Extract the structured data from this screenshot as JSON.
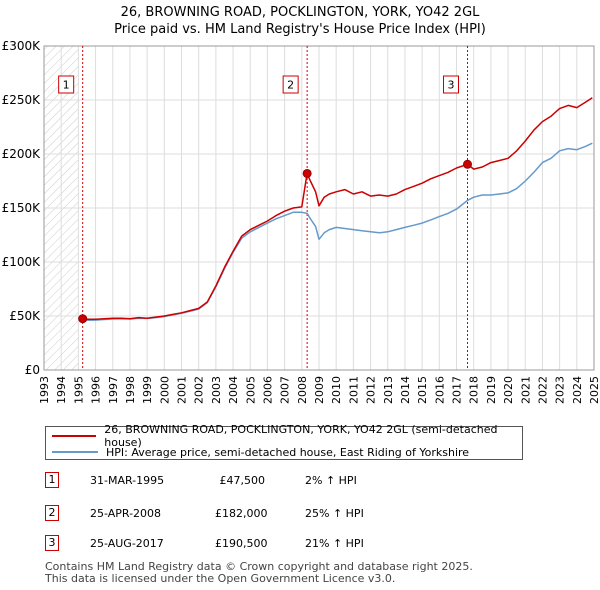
{
  "title_line1": "26, BROWNING ROAD, POCKLINGTON, YORK, YO42 2GL",
  "title_line2": "Price paid vs. HM Land Registry's House Price Index (HPI)",
  "chart_data": {
    "type": "line",
    "title": "26, BROWNING ROAD, POCKLINGTON, YORK, YO42 2GL — Price paid vs. HM Land Registry's House Price Index (HPI)",
    "xlim": [
      1993,
      2025
    ],
    "ylim": [
      0,
      300000
    ],
    "x_ticks": [
      1993,
      1994,
      1995,
      1996,
      1997,
      1998,
      1999,
      2000,
      2001,
      2002,
      2003,
      2004,
      2005,
      2006,
      2007,
      2008,
      2009,
      2010,
      2011,
      2012,
      2013,
      2014,
      2015,
      2016,
      2017,
      2018,
      2019,
      2020,
      2021,
      2022,
      2023,
      2024,
      2025
    ],
    "y_ticks": [
      0,
      50000,
      100000,
      150000,
      200000,
      250000,
      300000
    ],
    "y_tick_labels": [
      "£0",
      "£50K",
      "£100K",
      "£150K",
      "£200K",
      "£250K",
      "£300K"
    ],
    "grid": true,
    "hatched_before": 1995.0,
    "series": [
      {
        "name": "26, BROWNING ROAD, POCKLINGTON, YORK, YO42 2GL (semi-detached house)",
        "color": "#cc0000",
        "x": [
          1995.25,
          1995.6,
          1996.0,
          1996.5,
          1997.0,
          1997.5,
          1998.0,
          1998.5,
          1999.0,
          1999.5,
          2000.0,
          2000.5,
          2001.0,
          2001.5,
          2002.0,
          2002.5,
          2003.0,
          2003.5,
          2004.0,
          2004.5,
          2005.0,
          2005.5,
          2006.0,
          2006.5,
          2007.0,
          2007.5,
          2008.0,
          2008.31,
          2008.5,
          2008.8,
          2009.0,
          2009.3,
          2009.6,
          2010.0,
          2010.5,
          2011.0,
          2011.5,
          2012.0,
          2012.5,
          2013.0,
          2013.5,
          2014.0,
          2014.5,
          2015.0,
          2015.5,
          2016.0,
          2016.5,
          2017.0,
          2017.64,
          2018.0,
          2018.5,
          2019.0,
          2019.5,
          2020.0,
          2020.5,
          2021.0,
          2021.5,
          2022.0,
          2022.5,
          2023.0,
          2023.5,
          2024.0,
          2024.5,
          2024.9
        ],
        "values": [
          47500,
          47000,
          47000,
          47500,
          48000,
          48000,
          47500,
          48500,
          48000,
          49000,
          50000,
          51500,
          53000,
          55000,
          57000,
          63000,
          78000,
          95000,
          110000,
          124000,
          130000,
          134000,
          138000,
          143000,
          147000,
          150000,
          151000,
          182000,
          175000,
          165000,
          152000,
          160000,
          163000,
          165000,
          167000,
          163000,
          165000,
          161000,
          162000,
          161000,
          163000,
          167000,
          170000,
          173000,
          177000,
          180000,
          183000,
          187000,
          190500,
          186000,
          188000,
          192000,
          194000,
          196000,
          203000,
          212000,
          222000,
          230000,
          235000,
          242000,
          245000,
          243000,
          248000,
          252000
        ]
      },
      {
        "name": "HPI: Average price, semi-detached house, East Riding of Yorkshire",
        "color": "#6699cc",
        "x": [
          1995.25,
          1995.6,
          1996.0,
          1996.5,
          1997.0,
          1997.5,
          1998.0,
          1998.5,
          1999.0,
          1999.5,
          2000.0,
          2000.5,
          2001.0,
          2001.5,
          2002.0,
          2002.5,
          2003.0,
          2003.5,
          2004.0,
          2004.5,
          2005.0,
          2005.5,
          2006.0,
          2006.5,
          2007.0,
          2007.5,
          2008.0,
          2008.31,
          2008.5,
          2008.8,
          2009.0,
          2009.3,
          2009.6,
          2010.0,
          2010.5,
          2011.0,
          2011.5,
          2012.0,
          2012.5,
          2013.0,
          2013.5,
          2014.0,
          2014.5,
          2015.0,
          2015.5,
          2016.0,
          2016.5,
          2017.0,
          2017.64,
          2018.0,
          2018.5,
          2019.0,
          2019.5,
          2020.0,
          2020.5,
          2021.0,
          2021.5,
          2022.0,
          2022.5,
          2023.0,
          2023.5,
          2024.0,
          2024.5,
          2024.9
        ],
        "values": [
          46500,
          46000,
          46200,
          46800,
          47200,
          47500,
          47200,
          48000,
          47800,
          48500,
          49500,
          51000,
          52500,
          54500,
          56500,
          62500,
          77000,
          94000,
          109000,
          122000,
          128000,
          132000,
          136000,
          140000,
          143000,
          146000,
          146000,
          145000,
          140000,
          133000,
          121000,
          127000,
          130000,
          132000,
          131000,
          130000,
          129000,
          128000,
          127000,
          128000,
          130000,
          132000,
          134000,
          136000,
          139000,
          142000,
          145000,
          149000,
          157000,
          160000,
          162000,
          162000,
          163000,
          164000,
          168000,
          175000,
          183000,
          192000,
          196000,
          203000,
          205000,
          204000,
          207000,
          210000
        ]
      }
    ],
    "annotations": [
      {
        "label": "1",
        "x": 1995.25,
        "y": 47500
      },
      {
        "label": "2",
        "x": 2008.31,
        "y": 182000
      },
      {
        "label": "3",
        "x": 2017.64,
        "y": 190500
      }
    ]
  },
  "legend": [
    {
      "label": "26, BROWNING ROAD, POCKLINGTON, YORK, YO42 2GL (semi-detached house)",
      "color": "#cc0000"
    },
    {
      "label": "HPI: Average price, semi-detached house, East Riding of Yorkshire",
      "color": "#6699cc"
    }
  ],
  "transactions": [
    {
      "num": "1",
      "date": "31-MAR-1995",
      "price": "£47,500",
      "hpi": "2% ↑ HPI"
    },
    {
      "num": "2",
      "date": "25-APR-2008",
      "price": "£182,000",
      "hpi": "25% ↑ HPI"
    },
    {
      "num": "3",
      "date": "25-AUG-2017",
      "price": "£190,500",
      "hpi": "21% ↑ HPI"
    }
  ],
  "footer_line1": "Contains HM Land Registry data © Crown copyright and database right 2025.",
  "footer_line2": "This data is licensed under the Open Government Licence v3.0."
}
